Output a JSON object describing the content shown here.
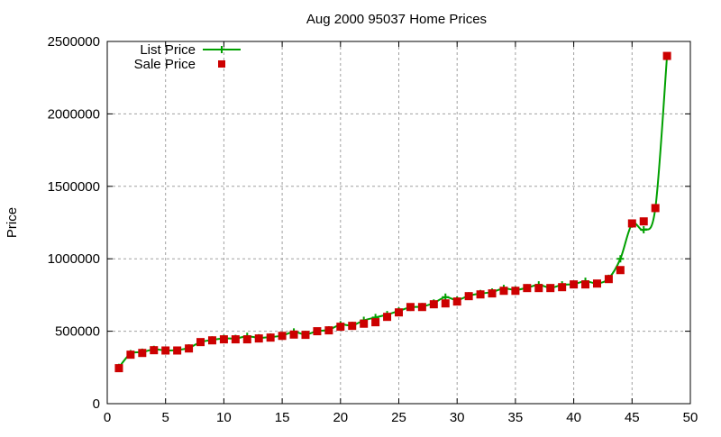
{
  "chart_data": {
    "type": "line",
    "title": "Aug 2000 95037 Home Prices",
    "xlabel": "",
    "ylabel": "Price",
    "xlim": [
      0,
      50
    ],
    "ylim": [
      0,
      2500000
    ],
    "xticks": [
      0,
      5,
      10,
      15,
      20,
      25,
      30,
      35,
      40,
      45,
      50
    ],
    "yticks": [
      0,
      500000,
      1000000,
      1500000,
      2000000,
      2500000
    ],
    "grid": true,
    "legend_position": "top-left",
    "x": [
      1,
      2,
      3,
      4,
      5,
      6,
      7,
      8,
      9,
      10,
      11,
      12,
      13,
      14,
      15,
      16,
      17,
      18,
      19,
      20,
      21,
      22,
      23,
      24,
      25,
      26,
      27,
      28,
      29,
      30,
      31,
      32,
      33,
      34,
      35,
      36,
      37,
      38,
      39,
      40,
      41,
      42,
      43,
      44,
      45,
      46,
      47,
      48
    ],
    "series": [
      {
        "name": "List Price",
        "color": "#00a000",
        "marker": "plus",
        "style": "smooth-line",
        "values": [
          250000,
          345000,
          355000,
          375000,
          367000,
          370000,
          385000,
          425000,
          440000,
          450000,
          450000,
          465000,
          455000,
          460000,
          470000,
          495000,
          478000,
          500000,
          510000,
          545000,
          540000,
          575000,
          595000,
          615000,
          640000,
          665000,
          670000,
          695000,
          735000,
          715000,
          745000,
          760000,
          770000,
          795000,
          785000,
          800000,
          820000,
          800000,
          820000,
          825000,
          845000,
          830000,
          865000,
          1000000,
          1240000,
          1200000,
          1350000,
          2400000
        ]
      },
      {
        "name": "Sale Price",
        "color": "#cc0000",
        "marker": "square",
        "style": "points",
        "values": [
          245000,
          338000,
          350000,
          369000,
          367000,
          367000,
          381000,
          425000,
          437000,
          444000,
          444000,
          444000,
          450000,
          456000,
          468000,
          477000,
          475000,
          500000,
          506000,
          531000,
          537000,
          552000,
          562000,
          599000,
          630000,
          667000,
          667000,
          686000,
          692000,
          705000,
          742000,
          754000,
          761000,
          779000,
          779000,
          798000,
          798000,
          798000,
          804000,
          823000,
          823000,
          829000,
          860000,
          922000,
          1244000,
          1258000,
          1350000,
          2400000
        ]
      }
    ]
  }
}
